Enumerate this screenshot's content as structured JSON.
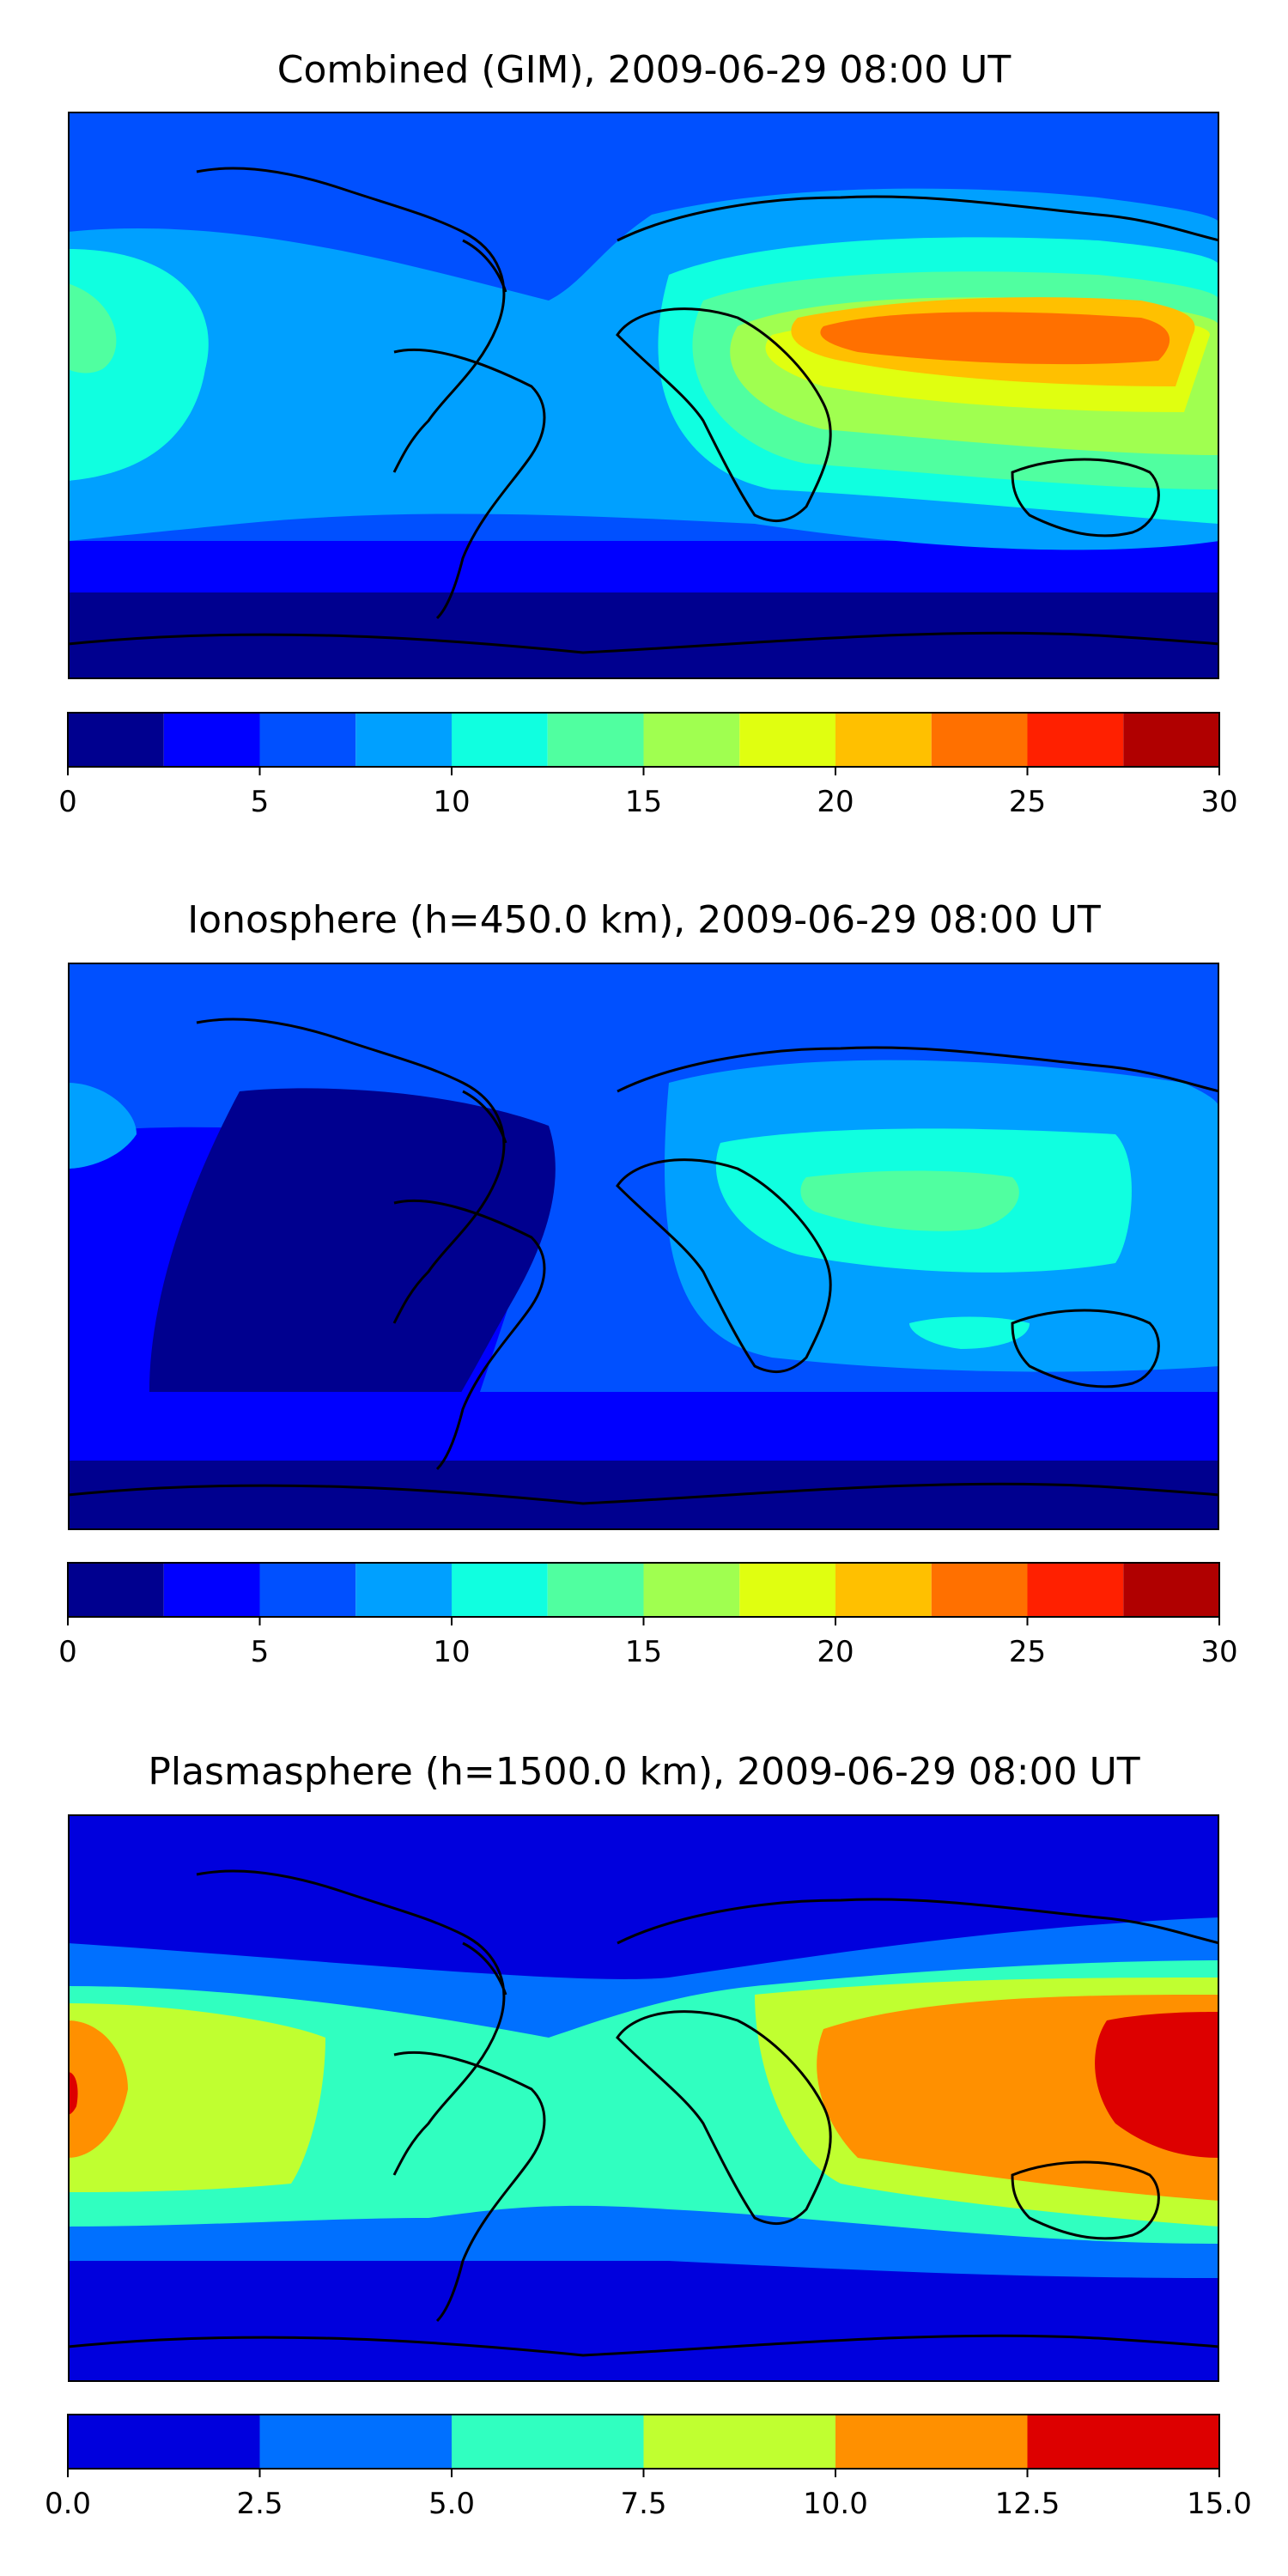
{
  "panels": [
    {
      "title": "Combined (GIM), 2009-06-29 08:00 UT",
      "colorbar": {
        "vmin": 0,
        "vmax": 30,
        "levels": [
          0,
          2.5,
          5,
          7.5,
          10,
          12.5,
          15,
          17.5,
          20,
          22.5,
          25,
          27.5,
          30
        ],
        "colors": [
          "#00008f",
          "#0000ff",
          "#0050ff",
          "#00a0ff",
          "#10ffe0",
          "#50ffa0",
          "#a0ff50",
          "#e0ff10",
          "#ffc000",
          "#ff7000",
          "#ff2000",
          "#b00000"
        ],
        "ticks": [
          "0",
          "5",
          "10",
          "15",
          "20",
          "25",
          "30"
        ]
      }
    },
    {
      "title": "Ionosphere  (h=450.0 km), 2009-06-29 08:00 UT",
      "colorbar": {
        "vmin": 0,
        "vmax": 30,
        "levels": [
          0,
          2.5,
          5,
          7.5,
          10,
          12.5,
          15,
          17.5,
          20,
          22.5,
          25,
          27.5,
          30
        ],
        "colors": [
          "#00008f",
          "#0000ff",
          "#0050ff",
          "#00a0ff",
          "#10ffe0",
          "#50ffa0",
          "#a0ff50",
          "#e0ff10",
          "#ffc000",
          "#ff7000",
          "#ff2000",
          "#b00000"
        ],
        "ticks": [
          "0",
          "5",
          "10",
          "15",
          "20",
          "25",
          "30"
        ]
      }
    },
    {
      "title": "Plasmasphere (h=1500.0 km), 2009-06-29 08:00 UT",
      "colorbar": {
        "vmin": 0,
        "vmax": 15,
        "levels": [
          0,
          2.5,
          5,
          7.5,
          10,
          12.5,
          15
        ],
        "colors": [
          "#0000dd",
          "#0070ff",
          "#30ffc0",
          "#c0ff30",
          "#ff9000",
          "#dd0000"
        ],
        "ticks": [
          "0.0",
          "2.5",
          "5.0",
          "7.5",
          "10.0",
          "12.5",
          "15.0"
        ]
      }
    }
  ]
}
